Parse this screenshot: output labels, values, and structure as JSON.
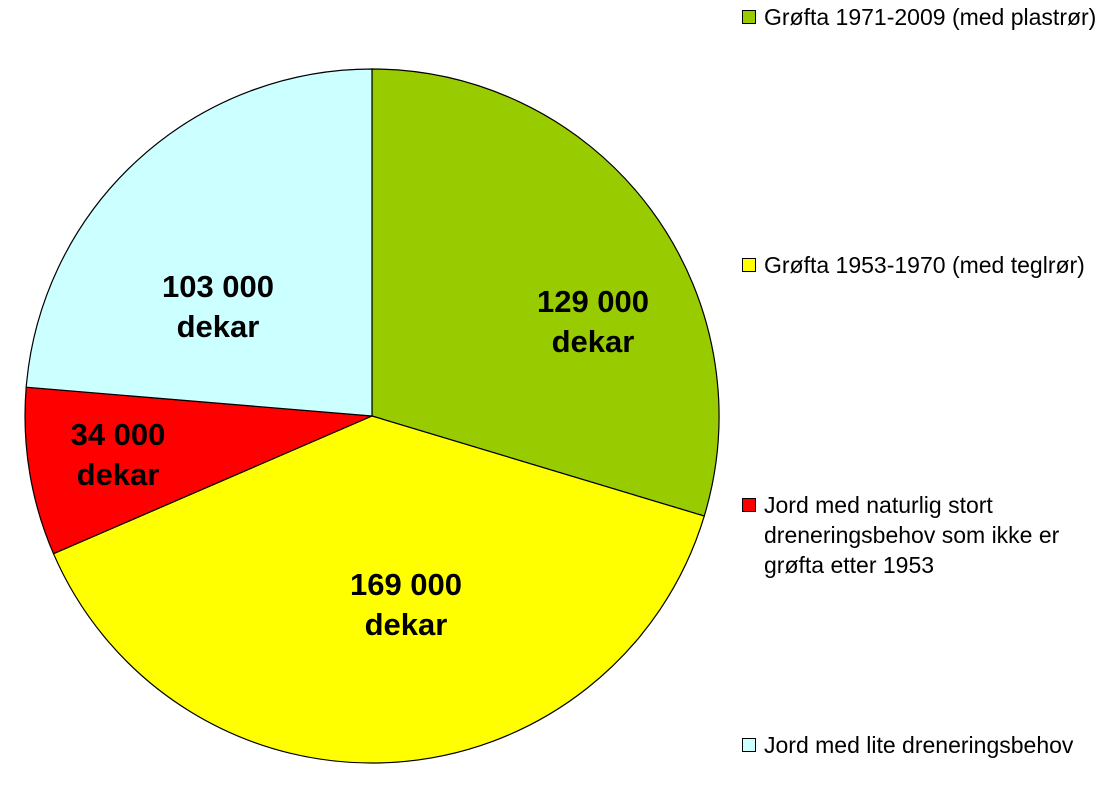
{
  "chart_data": {
    "type": "pie",
    "categories": [
      "Grøfta 1971-2009 (med plastrør)",
      "Grøfta 1953-1970 (med teglrør)",
      "Jord med naturlig stort dreneringsbehov som ikke er grøfta etter 1953",
      "Jord med lite dreneringsbehov"
    ],
    "values": [
      129000,
      169000,
      34000,
      103000
    ],
    "value_labels": [
      "129 000\ndekar",
      "169 000\ndekar",
      "34 000\ndekar",
      "103 000\ndekar"
    ],
    "colors": [
      "#99cc00",
      "#ffff00",
      "#ff0000",
      "#ccffff"
    ],
    "legend": "right"
  }
}
